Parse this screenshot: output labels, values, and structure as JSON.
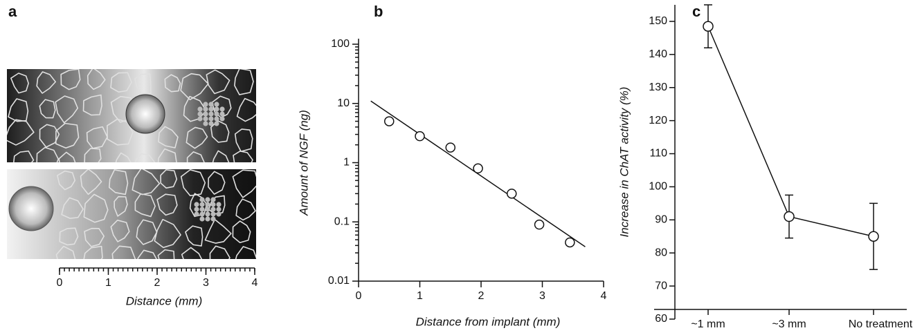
{
  "chart_data": [
    {
      "type": "schematic",
      "label": "a",
      "xlabel": "Distance (mm)",
      "xlim": [
        0,
        4
      ],
      "xticks": [
        0,
        1,
        2,
        3,
        4
      ]
    },
    {
      "type": "scatter",
      "label": "b",
      "xlabel": "Distance from implant (mm)",
      "ylabel": "Amount of NGF (ng)",
      "log_y": true,
      "xlim": [
        0,
        4
      ],
      "xticks": [
        0,
        1,
        2,
        3,
        4
      ],
      "ylim": [
        0.01,
        100
      ],
      "yticks": [
        0.01,
        0.1,
        1,
        10,
        100
      ],
      "x": [
        0.5,
        1,
        1.5,
        1.95,
        2.5,
        2.95,
        3.45
      ],
      "values": [
        5,
        2.8,
        1.8,
        0.8,
        0.3,
        0.09,
        0.045
      ],
      "trend": {
        "x": [
          0.2,
          3.7
        ],
        "values": [
          11,
          0.038
        ]
      }
    },
    {
      "type": "line",
      "label": "c",
      "ylabel": "Increase in ChAT activity (%)",
      "categories": [
        "~1 mm",
        "~3 mm",
        "No treatment"
      ],
      "values": [
        148.5,
        91,
        85
      ],
      "errors": [
        6.5,
        6.5,
        10
      ],
      "ylim": [
        60,
        155
      ],
      "yticks": [
        60,
        70,
        80,
        90,
        100,
        110,
        120,
        130,
        140,
        150
      ]
    }
  ]
}
